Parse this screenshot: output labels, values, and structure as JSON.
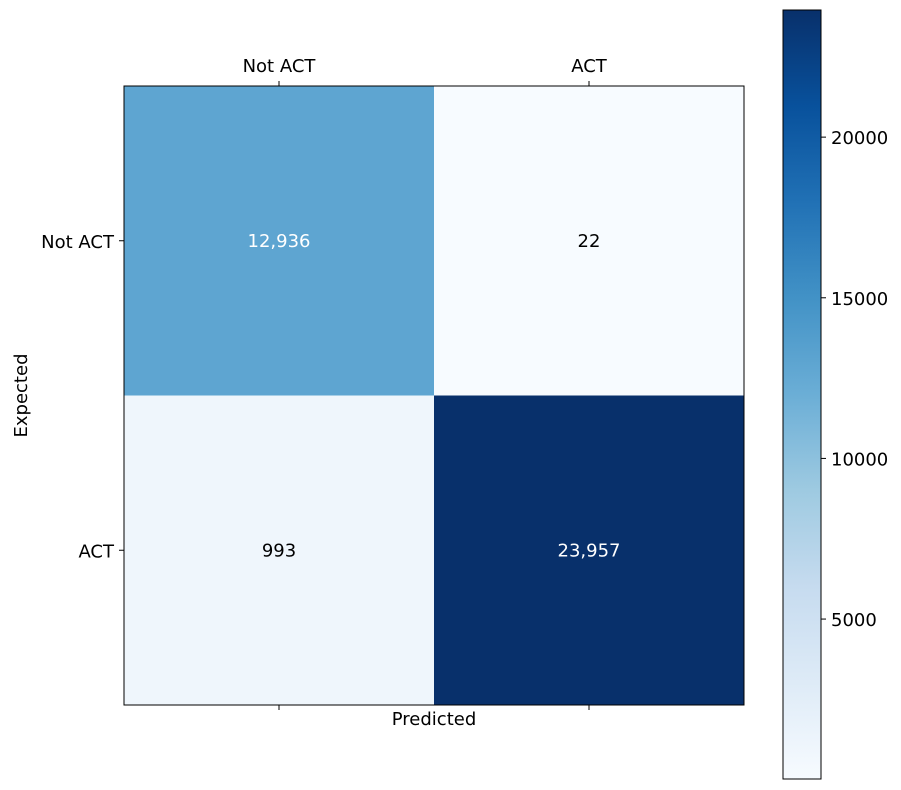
{
  "chart_data": {
    "type": "heatmap",
    "xlabel": "Predicted",
    "ylabel": "Expected",
    "x_categories": [
      "Not ACT",
      "ACT"
    ],
    "y_categories": [
      "Not ACT",
      "ACT"
    ],
    "values": [
      [
        12936,
        22
      ],
      [
        993,
        23957
      ]
    ],
    "cell_labels": [
      [
        "12,936",
        "22"
      ],
      [
        "993",
        "23,957"
      ]
    ],
    "colormap": "Blues",
    "colorbar": {
      "range": [
        22,
        23957
      ],
      "ticks": [
        5000,
        10000,
        15000,
        20000
      ],
      "tick_labels": [
        "5000",
        "10000",
        "15000",
        "20000"
      ]
    },
    "x_tick_position": "top",
    "grid": false
  }
}
